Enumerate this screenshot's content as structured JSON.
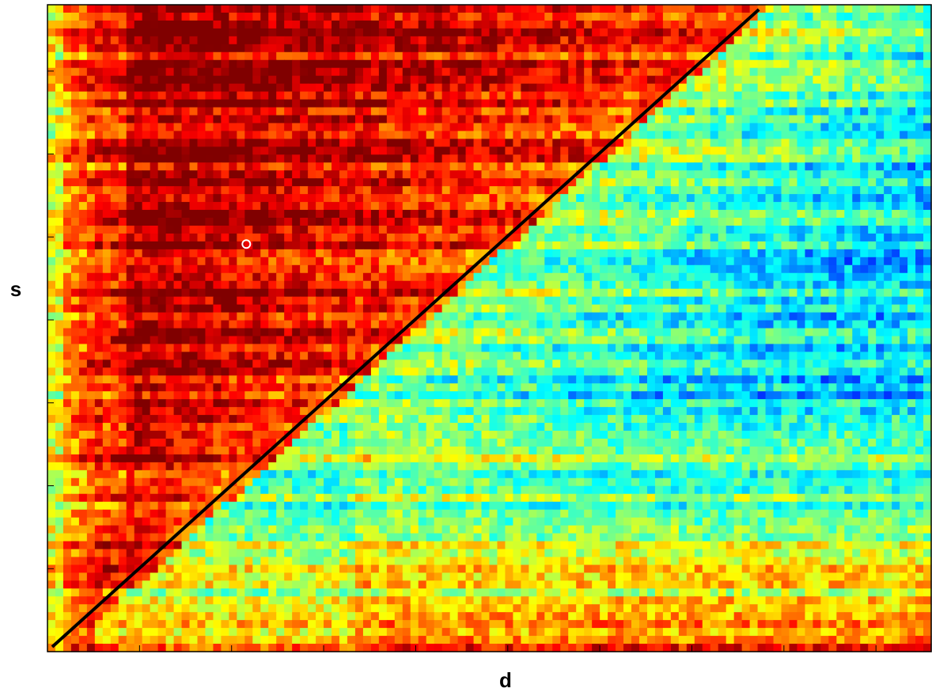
{
  "chart_data": {
    "type": "heatmap",
    "title": "",
    "xlabel": "d",
    "ylabel": "s",
    "colormap": "jet",
    "grid": false,
    "xtick_labels": [],
    "ytick_labels": [],
    "matrix_size": {
      "cols": 112,
      "rows": 82
    },
    "row_profile": {
      "description_hidden": true,
      "top_hot_until_col_frac": [
        0.6,
        0.42,
        0.3,
        0.16
      ],
      "bottom_hot_from_col_frac": [
        0.0,
        0.35,
        0.5,
        0.4
      ]
    },
    "boundary_line": {
      "x": [
        0,
        1
      ],
      "y": [
        0,
        1
      ],
      "color": "#000000"
    },
    "marker": {
      "x": 0.225,
      "y": 0.63,
      "shape": "circle",
      "color": "#ffffff"
    }
  }
}
